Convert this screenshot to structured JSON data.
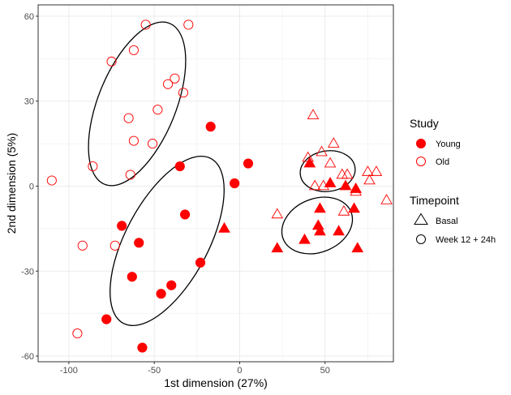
{
  "chart_data": {
    "type": "scatter",
    "title": "",
    "xlabel": "1st dimension (27%)",
    "ylabel": "2nd dimension (5%)",
    "xlim": [
      -118,
      90
    ],
    "ylim": [
      -62,
      64
    ],
    "xticks": [
      -100,
      -50,
      0,
      50
    ],
    "yticks": [
      -60,
      -30,
      0,
      30,
      60
    ],
    "xtick_labels": [
      "-100",
      "-50",
      "0",
      "50"
    ],
    "ytick_labels": [
      "-60",
      "-30",
      "0",
      "30",
      "60"
    ],
    "grid": true,
    "legend_position": "right",
    "colors": {
      "study": "#ff0000",
      "ellipse": "#000000",
      "panel_border": "#333333",
      "grid": "#ebebeb"
    },
    "legend": {
      "study": {
        "title": "Study",
        "entries": [
          {
            "label": "Young",
            "shape": "circle",
            "filled": true
          },
          {
            "label": "Old",
            "shape": "circle",
            "filled": false
          }
        ]
      },
      "timepoint": {
        "title": "Timepoint",
        "entries": [
          {
            "label": "Basal",
            "shape": "triangle"
          },
          {
            "label": "Week 12 + 24h",
            "shape": "circle"
          }
        ]
      }
    },
    "series": [
      {
        "study": "Young",
        "timepoint": "Basal",
        "filled": true,
        "shape": "triangle",
        "points": [
          [
            -9,
            -15
          ],
          [
            22,
            -22
          ],
          [
            38,
            -19
          ],
          [
            46,
            -14
          ],
          [
            47,
            -8
          ],
          [
            47,
            -16
          ],
          [
            58,
            -16
          ],
          [
            67,
            -8
          ],
          [
            69,
            -22
          ],
          [
            41,
            8
          ],
          [
            53,
            1
          ],
          [
            62,
            0
          ],
          [
            68,
            -1
          ]
        ]
      },
      {
        "study": "Young",
        "timepoint": "Week 12 + 24h",
        "filled": true,
        "shape": "circle",
        "points": [
          [
            -17,
            21
          ],
          [
            5,
            8
          ],
          [
            -35,
            7
          ],
          [
            -3,
            1
          ],
          [
            -69,
            -14
          ],
          [
            -32,
            -10
          ],
          [
            -59,
            -20
          ],
          [
            -23,
            -27
          ],
          [
            -63,
            -32
          ],
          [
            -40,
            -35
          ],
          [
            -46,
            -38
          ],
          [
            -78,
            -47
          ],
          [
            -57,
            -57
          ]
        ]
      },
      {
        "study": "Old",
        "timepoint": "Basal",
        "filled": false,
        "shape": "triangle",
        "points": [
          [
            43,
            25
          ],
          [
            55,
            15
          ],
          [
            48,
            12
          ],
          [
            40,
            10
          ],
          [
            53,
            8
          ],
          [
            60,
            4
          ],
          [
            63,
            4
          ],
          [
            75,
            5
          ],
          [
            80,
            5
          ],
          [
            86,
            -5
          ],
          [
            76,
            2
          ],
          [
            68,
            -2
          ],
          [
            49,
            0
          ],
          [
            44,
            0
          ],
          [
            61,
            -9
          ],
          [
            22,
            -10
          ]
        ]
      },
      {
        "study": "Old",
        "timepoint": "Week 12 + 24h",
        "filled": false,
        "shape": "circle",
        "points": [
          [
            -55,
            57
          ],
          [
            -30,
            57
          ],
          [
            -62,
            48
          ],
          [
            -75,
            44
          ],
          [
            -38,
            38
          ],
          [
            -42,
            36
          ],
          [
            -33,
            33
          ],
          [
            -48,
            27
          ],
          [
            -65,
            24
          ],
          [
            -62,
            16
          ],
          [
            -51,
            15
          ],
          [
            -86,
            7
          ],
          [
            -64,
            4
          ],
          [
            -110,
            2
          ],
          [
            -92,
            -21
          ],
          [
            -73,
            -21
          ],
          [
            -95,
            -52
          ]
        ]
      }
    ],
    "ellipses": [
      {
        "group": "Old / Week 12 + 24h"
      },
      {
        "group": "Young / Week 12 + 24h"
      },
      {
        "group": "Old / Basal"
      },
      {
        "group": "Young / Basal"
      }
    ]
  }
}
